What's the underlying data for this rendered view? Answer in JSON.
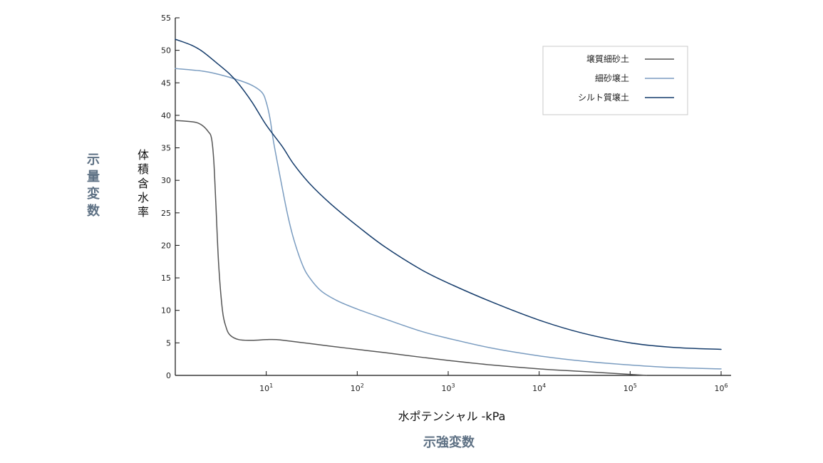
{
  "chart_data": {
    "type": "line",
    "title": "",
    "xlabel": "水ポテンシャル -kPa",
    "ylabel": "体積含水率",
    "side_label_y": "示量変数",
    "side_label_x": "示強変数",
    "x_scale": "log",
    "xlim": [
      1,
      1000000
    ],
    "ylim": [
      0,
      55
    ],
    "x_ticks": [
      {
        "value": 10,
        "base": "10",
        "exp": "1"
      },
      {
        "value": 100,
        "base": "10",
        "exp": "2"
      },
      {
        "value": 1000,
        "base": "10",
        "exp": "3"
      },
      {
        "value": 10000,
        "base": "10",
        "exp": "4"
      },
      {
        "value": 100000,
        "base": "10",
        "exp": "5"
      },
      {
        "value": 1000000,
        "base": "10",
        "exp": "6"
      }
    ],
    "y_ticks": [
      "0",
      "5",
      "10",
      "15",
      "20",
      "25",
      "30",
      "35",
      "40",
      "45",
      "50",
      "55"
    ],
    "grid": false,
    "legend_position": "top-right",
    "series": [
      {
        "name": "壌質細砂土",
        "color": "#555555",
        "points": [
          [
            1,
            39.2
          ],
          [
            1.3,
            39.1
          ],
          [
            1.7,
            38.9
          ],
          [
            2,
            38.4
          ],
          [
            2.3,
            37.5
          ],
          [
            2.5,
            36.5
          ],
          [
            2.65,
            33
          ],
          [
            2.8,
            26
          ],
          [
            3,
            17
          ],
          [
            3.3,
            10
          ],
          [
            3.6,
            7.5
          ],
          [
            4,
            6.2
          ],
          [
            5,
            5.5
          ],
          [
            7,
            5.4
          ],
          [
            10,
            5.5
          ],
          [
            13,
            5.5
          ],
          [
            20,
            5.2
          ],
          [
            30,
            4.9
          ],
          [
            50,
            4.5
          ],
          [
            100,
            4.0
          ],
          [
            200,
            3.5
          ],
          [
            500,
            2.8
          ],
          [
            1000,
            2.3
          ],
          [
            3000,
            1.6
          ],
          [
            10000,
            1.0
          ],
          [
            30000,
            0.6
          ],
          [
            100000,
            0.15
          ],
          [
            150000,
            0
          ]
        ]
      },
      {
        "name": "細砂壌土",
        "color": "#7a9cc0",
        "points": [
          [
            1,
            47.2
          ],
          [
            2,
            46.8
          ],
          [
            3,
            46.3
          ],
          [
            5,
            45.4
          ],
          [
            7,
            44.6
          ],
          [
            9,
            43.5
          ],
          [
            10,
            42
          ],
          [
            11,
            39.5
          ],
          [
            12,
            36
          ],
          [
            14,
            31
          ],
          [
            17,
            25
          ],
          [
            20,
            21
          ],
          [
            25,
            17
          ],
          [
            30,
            15
          ],
          [
            40,
            13
          ],
          [
            60,
            11.5
          ],
          [
            100,
            10.2
          ],
          [
            200,
            8.7
          ],
          [
            500,
            6.8
          ],
          [
            1000,
            5.7
          ],
          [
            3000,
            4.2
          ],
          [
            10000,
            3.0
          ],
          [
            30000,
            2.2
          ],
          [
            100000,
            1.6
          ],
          [
            300000,
            1.2
          ],
          [
            1000000,
            1.0
          ]
        ]
      },
      {
        "name": "シルト質壌土",
        "color": "#153c6b",
        "points": [
          [
            1,
            51.7
          ],
          [
            1.5,
            50.8
          ],
          [
            2,
            49.8
          ],
          [
            3,
            47.8
          ],
          [
            4,
            46.3
          ],
          [
            5,
            44.8
          ],
          [
            7,
            42
          ],
          [
            10,
            38.5
          ],
          [
            15,
            35.2
          ],
          [
            20,
            32.5
          ],
          [
            30,
            29.5
          ],
          [
            50,
            26.5
          ],
          [
            100,
            23
          ],
          [
            200,
            19.8
          ],
          [
            500,
            16.3
          ],
          [
            1000,
            14.2
          ],
          [
            3000,
            11.3
          ],
          [
            10000,
            8.5
          ],
          [
            30000,
            6.5
          ],
          [
            100000,
            5.0
          ],
          [
            300000,
            4.3
          ],
          [
            1000000,
            4.0
          ]
        ]
      }
    ]
  }
}
